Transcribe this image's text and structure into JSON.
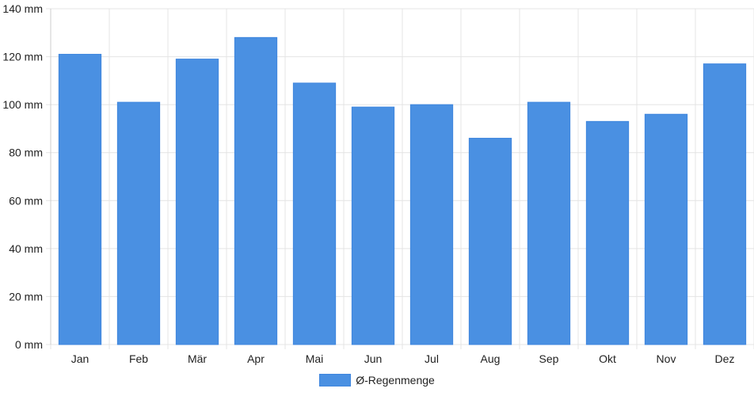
{
  "chart_data": {
    "type": "bar",
    "categories": [
      "Jan",
      "Feb",
      "Mär",
      "Apr",
      "Mai",
      "Jun",
      "Jul",
      "Aug",
      "Sep",
      "Okt",
      "Nov",
      "Dez"
    ],
    "series": [
      {
        "name": "Ø-Regenmenge",
        "values": [
          121,
          101,
          119,
          128,
          109,
          99,
          100,
          86,
          101,
          93,
          96,
          117
        ],
        "color": "#4a90e2"
      }
    ],
    "unit": "mm",
    "ylim": [
      0,
      140
    ],
    "yticks": [
      0,
      20,
      40,
      60,
      80,
      100,
      120,
      140
    ],
    "ytick_labels": [
      "0 mm",
      "20 mm",
      "40 mm",
      "60 mm",
      "80 mm",
      "100 mm",
      "120 mm",
      "140 mm"
    ],
    "grid": true,
    "legend_position": "bottom-center",
    "title": "",
    "xlabel": "",
    "ylabel": ""
  }
}
